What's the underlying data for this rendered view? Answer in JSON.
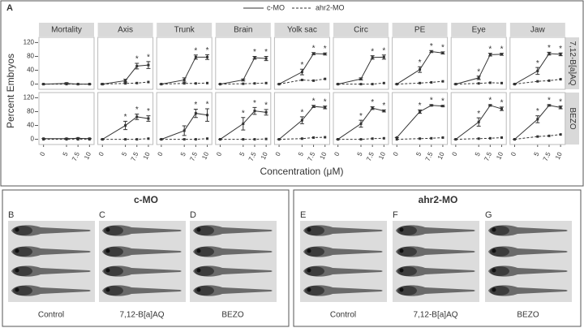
{
  "panel_label": "A",
  "chart_data": {
    "type": "line",
    "x_label": "Concentration (μM)",
    "y_label": "Percent Embryos",
    "star": "*",
    "x": [
      0,
      5,
      7.5,
      10
    ],
    "xlim": [
      -1,
      11
    ],
    "ylim": [
      -15,
      135
    ],
    "yticks": [
      0,
      40,
      80,
      120
    ],
    "series": [
      {
        "name": "c-MO",
        "color": "#333333",
        "dash": false
      },
      {
        "name": "ahr2-MO",
        "color": "#333333",
        "dash": true
      }
    ],
    "columns": [
      "Mortality",
      "Axis",
      "Trunk",
      "Brain",
      "Yolk sac",
      "Circ",
      "PE",
      "Eye",
      "Jaw"
    ],
    "rows": [
      "7,12-B[a]AQ",
      "BEZO"
    ],
    "panels": [
      {
        "values": [
          [
            0,
            2,
            0,
            0
          ],
          [
            0,
            0,
            0,
            0
          ]
        ],
        "errors": [
          0,
          2,
          0,
          0
        ],
        "significant": [
          false,
          false,
          false,
          false
        ]
      },
      {
        "values": [
          [
            0,
            10,
            52,
            55
          ],
          [
            0,
            2,
            3,
            6
          ]
        ],
        "errors": [
          1,
          4,
          8,
          10
        ],
        "significant": [
          false,
          false,
          true,
          true
        ]
      },
      {
        "values": [
          [
            0,
            12,
            78,
            78
          ],
          [
            0,
            2,
            2,
            3
          ]
        ],
        "errors": [
          0,
          6,
          6,
          7
        ],
        "significant": [
          false,
          false,
          true,
          true
        ]
      },
      {
        "values": [
          [
            0,
            12,
            76,
            74
          ],
          [
            0,
            1,
            2,
            3
          ]
        ],
        "errors": [
          0,
          3,
          4,
          6
        ],
        "significant": [
          false,
          false,
          true,
          true
        ]
      },
      {
        "values": [
          [
            0,
            35,
            88,
            87
          ],
          [
            0,
            12,
            10,
            15
          ]
        ],
        "errors": [
          0,
          8,
          3,
          3
        ],
        "significant": [
          false,
          true,
          true,
          true
        ]
      },
      {
        "values": [
          [
            0,
            15,
            77,
            78
          ],
          [
            0,
            0,
            0,
            3
          ]
        ],
        "errors": [
          0,
          3,
          5,
          6
        ],
        "significant": [
          false,
          false,
          true,
          true
        ]
      },
      {
        "values": [
          [
            0,
            42,
            94,
            90
          ],
          [
            0,
            3,
            5,
            8
          ]
        ],
        "errors": [
          0,
          8,
          3,
          3
        ],
        "significant": [
          false,
          true,
          true,
          true
        ]
      },
      {
        "values": [
          [
            0,
            18,
            85,
            86
          ],
          [
            0,
            2,
            4,
            3
          ]
        ],
        "errors": [
          0,
          5,
          4,
          3
        ],
        "significant": [
          false,
          true,
          true,
          true
        ]
      },
      {
        "values": [
          [
            0,
            38,
            88,
            86
          ],
          [
            0,
            8,
            10,
            14
          ]
        ],
        "errors": [
          0,
          10,
          4,
          4
        ],
        "significant": [
          false,
          true,
          true,
          true
        ]
      },
      {
        "values": [
          [
            2,
            2,
            3,
            2
          ],
          [
            0,
            0,
            0,
            0
          ]
        ],
        "errors": [
          0,
          1,
          1,
          1
        ],
        "significant": [
          false,
          false,
          false,
          false
        ]
      },
      {
        "values": [
          [
            0,
            40,
            65,
            60
          ],
          [
            0,
            0,
            0,
            2
          ]
        ],
        "errors": [
          0,
          12,
          8,
          8
        ],
        "significant": [
          false,
          true,
          true,
          true
        ]
      },
      {
        "values": [
          [
            0,
            25,
            75,
            70
          ],
          [
            0,
            0,
            0,
            2
          ]
        ],
        "errors": [
          0,
          14,
          12,
          18
        ],
        "significant": [
          false,
          false,
          true,
          true
        ]
      },
      {
        "values": [
          [
            0,
            45,
            82,
            78
          ],
          [
            0,
            0,
            0,
            1
          ]
        ],
        "errors": [
          0,
          18,
          10,
          8
        ],
        "significant": [
          false,
          true,
          true,
          true
        ]
      },
      {
        "values": [
          [
            0,
            55,
            95,
            92
          ],
          [
            0,
            2,
            5,
            6
          ]
        ],
        "errors": [
          0,
          10,
          3,
          4
        ],
        "significant": [
          false,
          true,
          true,
          true
        ]
      },
      {
        "values": [
          [
            0,
            45,
            90,
            82
          ],
          [
            0,
            0,
            2,
            3
          ]
        ],
        "errors": [
          0,
          10,
          4,
          3
        ],
        "significant": [
          false,
          true,
          true,
          true
        ]
      },
      {
        "values": [
          [
            5,
            80,
            98,
            96
          ],
          [
            0,
            2,
            3,
            5
          ]
        ],
        "errors": [
          0,
          5,
          2,
          2
        ],
        "significant": [
          false,
          true,
          true,
          true
        ]
      },
      {
        "values": [
          [
            0,
            50,
            98,
            88
          ],
          [
            0,
            2,
            3,
            5
          ]
        ],
        "errors": [
          0,
          12,
          2,
          5
        ],
        "significant": [
          false,
          true,
          true,
          true
        ]
      },
      {
        "values": [
          [
            0,
            58,
            98,
            92
          ],
          [
            0,
            8,
            10,
            14
          ]
        ],
        "errors": [
          0,
          10,
          2,
          4
        ],
        "significant": [
          false,
          true,
          true,
          true
        ]
      }
    ]
  },
  "images": {
    "groups": [
      {
        "title": "c-MO",
        "panels": [
          {
            "letter": "B",
            "caption": "Control"
          },
          {
            "letter": "C",
            "caption": "7,12-B[a]AQ"
          },
          {
            "letter": "D",
            "caption": "BEZO"
          }
        ]
      },
      {
        "title": "ahr2-MO",
        "panels": [
          {
            "letter": "E",
            "caption": "Control"
          },
          {
            "letter": "F",
            "caption": "7,12-B[a]AQ"
          },
          {
            "letter": "G",
            "caption": "BEZO"
          }
        ]
      }
    ]
  }
}
